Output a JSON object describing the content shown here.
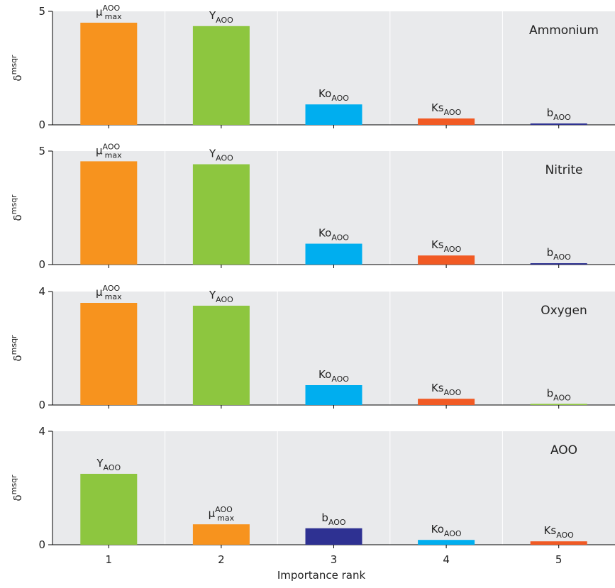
{
  "chart_data": [
    {
      "type": "bar",
      "panel_label": "Ammonium",
      "ylabel_base": "δ",
      "ylabel_sup": "msqr",
      "ylim": [
        0,
        5
      ],
      "yticks": [
        0,
        5
      ],
      "categories": [
        "1",
        "2",
        "3",
        "4",
        "5"
      ],
      "bars": [
        {
          "rank": 1,
          "label_base": "μ",
          "label_sup": "AOO",
          "label_sub": "max",
          "value": 4.5,
          "color": "#F7931E"
        },
        {
          "rank": 2,
          "label_base": "Y",
          "label_sup": "",
          "label_sub": "AOO",
          "value": 4.35,
          "color": "#8DC63F"
        },
        {
          "rank": 3,
          "label_base": "Ko",
          "label_sup": "",
          "label_sub": "AOO",
          "value": 0.9,
          "color": "#00AEEF"
        },
        {
          "rank": 4,
          "label_base": "Ks",
          "label_sup": "",
          "label_sub": "AOO",
          "value": 0.28,
          "color": "#F15A24"
        },
        {
          "rank": 5,
          "label_base": "b",
          "label_sup": "",
          "label_sub": "AOO",
          "value": 0.06,
          "color": "#2E3192"
        }
      ]
    },
    {
      "type": "bar",
      "panel_label": "Nitrite",
      "ylabel_base": "δ",
      "ylabel_sup": "msqr",
      "ylim": [
        0,
        5
      ],
      "yticks": [
        0,
        5
      ],
      "categories": [
        "1",
        "2",
        "3",
        "4",
        "5"
      ],
      "bars": [
        {
          "rank": 1,
          "label_base": "μ",
          "label_sup": "AOO",
          "label_sub": "max",
          "value": 4.55,
          "color": "#F7931E"
        },
        {
          "rank": 2,
          "label_base": "Y",
          "label_sup": "",
          "label_sub": "AOO",
          "value": 4.42,
          "color": "#8DC63F"
        },
        {
          "rank": 3,
          "label_base": "Ko",
          "label_sup": "",
          "label_sub": "AOO",
          "value": 0.92,
          "color": "#00AEEF"
        },
        {
          "rank": 4,
          "label_base": "Ks",
          "label_sup": "",
          "label_sub": "AOO",
          "value": 0.4,
          "color": "#F15A24"
        },
        {
          "rank": 5,
          "label_base": "b",
          "label_sup": "",
          "label_sub": "AOO",
          "value": 0.06,
          "color": "#2E3192"
        }
      ]
    },
    {
      "type": "bar",
      "panel_label": "Oxygen",
      "ylabel_base": "δ",
      "ylabel_sup": "msqr",
      "ylim": [
        0,
        4
      ],
      "yticks": [
        0,
        4
      ],
      "categories": [
        "1",
        "2",
        "3",
        "4",
        "5"
      ],
      "bars": [
        {
          "rank": 1,
          "label_base": "μ",
          "label_sup": "AOO",
          "label_sub": "max",
          "value": 3.6,
          "color": "#F7931E"
        },
        {
          "rank": 2,
          "label_base": "Y",
          "label_sup": "",
          "label_sub": "AOO",
          "value": 3.5,
          "color": "#8DC63F"
        },
        {
          "rank": 3,
          "label_base": "Ko",
          "label_sup": "",
          "label_sub": "AOO",
          "value": 0.7,
          "color": "#00AEEF"
        },
        {
          "rank": 4,
          "label_base": "Ks",
          "label_sup": "",
          "label_sub": "AOO",
          "value": 0.22,
          "color": "#F15A24"
        },
        {
          "rank": 5,
          "label_base": "b",
          "label_sup": "",
          "label_sub": "AOO",
          "value": 0.04,
          "color": "#8DC63F"
        }
      ]
    },
    {
      "type": "bar",
      "panel_label": "AOO",
      "ylabel_base": "δ",
      "ylabel_sup": "msqr",
      "ylim": [
        0,
        4
      ],
      "yticks": [
        0,
        4
      ],
      "categories": [
        "1",
        "2",
        "3",
        "4",
        "5"
      ],
      "bars": [
        {
          "rank": 1,
          "label_base": "Y",
          "label_sup": "",
          "label_sub": "AOO",
          "value": 2.5,
          "color": "#8DC63F"
        },
        {
          "rank": 2,
          "label_base": "μ",
          "label_sup": "AOO",
          "label_sub": "max",
          "value": 0.72,
          "color": "#F7931E"
        },
        {
          "rank": 3,
          "label_base": "b",
          "label_sup": "",
          "label_sub": "AOO",
          "value": 0.58,
          "color": "#2E3192"
        },
        {
          "rank": 4,
          "label_base": "Ko",
          "label_sup": "",
          "label_sub": "AOO",
          "value": 0.17,
          "color": "#00AEEF"
        },
        {
          "rank": 5,
          "label_base": "Ks",
          "label_sup": "",
          "label_sub": "AOO",
          "value": 0.12,
          "color": "#F15A24"
        }
      ]
    }
  ],
  "xlabel": "Importance rank",
  "xtick_labels": [
    "1",
    "2",
    "3",
    "4",
    "5"
  ],
  "colors": {
    "panel_background": "#E9EAEC",
    "grid_divider": "#FFFFFF",
    "axis": "#000000"
  }
}
